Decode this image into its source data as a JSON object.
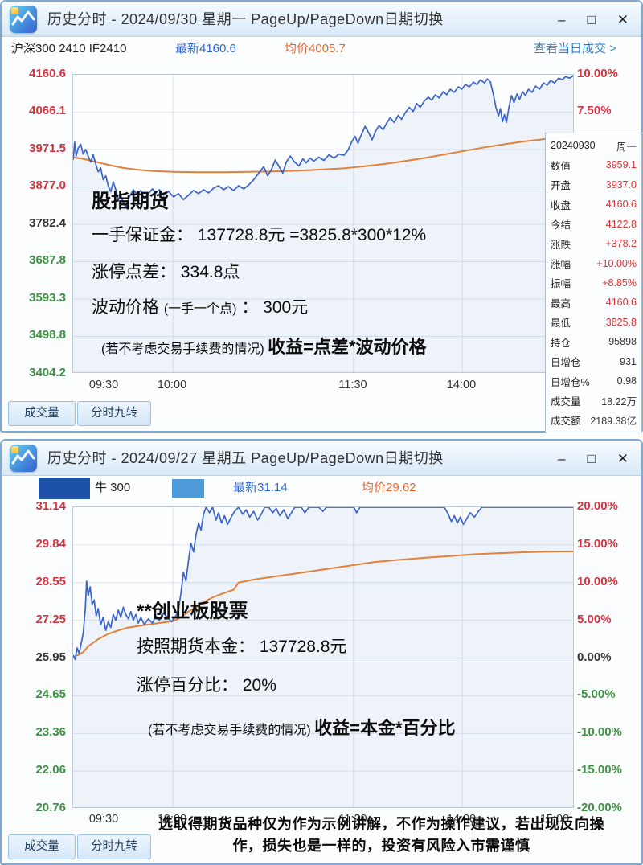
{
  "colors": {
    "price_line": "#3c64c8",
    "avg_line": "#e2813a",
    "grid": "#dde5ef",
    "area_fill": "rgba(110,145,210,0.10)",
    "up_red": "#d23440",
    "down_green": "#3d9140",
    "latest_blue": "#2a66d8",
    "avg_orange": "#e8662e",
    "link_blue": "#2f80d0",
    "censor_dark": "#1d4fa6",
    "censor_light": "#4f9ad8"
  },
  "window1": {
    "title": "历史分时 - 2024/09/30 星期一 PageUp/PageDown日期切换",
    "controls": {
      "minimize": "–",
      "maximize": "□",
      "close": "✕"
    },
    "info": {
      "symbol": "沪深300 2410  IF2410",
      "latest": "最新4160.6",
      "avg": "均价4005.7",
      "link": "查看当日成交 >"
    },
    "left_axis": [
      "4160.6",
      "4066.1",
      "3971.5",
      "3877.0",
      "3782.4",
      "3687.8",
      "3593.3",
      "3498.8",
      "3404.2"
    ],
    "right_axis": [
      "10.00%",
      "7.50%"
    ],
    "x_labels": [
      "09:30",
      "10:00",
      "11:30",
      "14:00"
    ],
    "tabs": [
      "成交量",
      "分时九转"
    ],
    "panel": {
      "date": "20240930",
      "day": "周一",
      "rows": [
        {
          "label": "数值",
          "value": "3959.1"
        },
        {
          "label": "开盘",
          "value": "3937.0"
        },
        {
          "label": "收盘",
          "value": "4160.6"
        },
        {
          "label": "今结",
          "value": "4122.8"
        },
        {
          "label": "涨跌",
          "value": "+378.2"
        },
        {
          "label": "涨幅",
          "value": "+10.00%"
        },
        {
          "label": "振幅",
          "value": "+8.85%"
        },
        {
          "label": "最高",
          "value": "4160.6"
        },
        {
          "label": "最低",
          "value": "3825.8"
        },
        {
          "label": "持仓",
          "value": "95898"
        },
        {
          "label": "日增仓",
          "value": "931"
        },
        {
          "label": "日增仓%",
          "value": "0.98"
        },
        {
          "label": "成交量",
          "value": "18.22万"
        },
        {
          "label": "成交额",
          "value": "2189.38亿"
        }
      ]
    },
    "overlay": {
      "title": "股指期货",
      "line1": "一手保证金： 137728.8元 =3825.8*300*12%",
      "line2": "涨停点差： 334.8点",
      "line3_pre": "波动价格 ",
      "line3_paren": "(一手一个点)",
      "line3_post": " ： 300元",
      "line4_paren": "(若不考虑交易手续费的情况) ",
      "line4_bold": "收益=点差*波动价格"
    },
    "chart": {
      "type": "line",
      "ymax": 4160.6,
      "ymin": 3404.2,
      "prev_close": 3782.4,
      "grid_x": [
        0.199,
        0.559,
        0.776
      ],
      "avg": [
        [
          0,
          3952
        ],
        [
          0.02,
          3948
        ],
        [
          0.04,
          3942
        ],
        [
          0.06,
          3936
        ],
        [
          0.08,
          3930
        ],
        [
          0.1,
          3925
        ],
        [
          0.13,
          3920
        ],
        [
          0.16,
          3917
        ],
        [
          0.2,
          3915
        ],
        [
          0.25,
          3914
        ],
        [
          0.3,
          3914
        ],
        [
          0.35,
          3915
        ],
        [
          0.4,
          3916
        ],
        [
          0.45,
          3918
        ],
        [
          0.5,
          3921
        ],
        [
          0.54,
          3924
        ],
        [
          0.58,
          3929
        ],
        [
          0.62,
          3935
        ],
        [
          0.66,
          3942
        ],
        [
          0.7,
          3950
        ],
        [
          0.74,
          3959
        ],
        [
          0.78,
          3968
        ],
        [
          0.82,
          3977
        ],
        [
          0.86,
          3985
        ],
        [
          0.9,
          3992
        ],
        [
          0.94,
          3998
        ],
        [
          0.97,
          4002
        ],
        [
          1,
          4005.7
        ]
      ],
      "price": [
        [
          0,
          3945
        ],
        [
          0.003,
          3990
        ],
        [
          0.006,
          3955
        ],
        [
          0.01,
          3975
        ],
        [
          0.015,
          3985
        ],
        [
          0.02,
          3960
        ],
        [
          0.025,
          3972
        ],
        [
          0.03,
          3955
        ],
        [
          0.035,
          3940
        ],
        [
          0.04,
          3958
        ],
        [
          0.045,
          3935
        ],
        [
          0.05,
          3915
        ],
        [
          0.055,
          3925
        ],
        [
          0.06,
          3895
        ],
        [
          0.065,
          3905
        ],
        [
          0.07,
          3880
        ],
        [
          0.075,
          3865
        ],
        [
          0.08,
          3890
        ],
        [
          0.085,
          3870
        ],
        [
          0.09,
          3845
        ],
        [
          0.095,
          3855
        ],
        [
          0.1,
          3838
        ],
        [
          0.105,
          3826
        ],
        [
          0.112,
          3852
        ],
        [
          0.12,
          3870
        ],
        [
          0.128,
          3858
        ],
        [
          0.135,
          3868
        ],
        [
          0.142,
          3848
        ],
        [
          0.15,
          3860
        ],
        [
          0.158,
          3872
        ],
        [
          0.165,
          3862
        ],
        [
          0.172,
          3870
        ],
        [
          0.18,
          3856
        ],
        [
          0.19,
          3866
        ],
        [
          0.2,
          3852
        ],
        [
          0.21,
          3860
        ],
        [
          0.22,
          3845
        ],
        [
          0.23,
          3856
        ],
        [
          0.24,
          3868
        ],
        [
          0.25,
          3860
        ],
        [
          0.26,
          3870
        ],
        [
          0.27,
          3862
        ],
        [
          0.28,
          3874
        ],
        [
          0.29,
          3880
        ],
        [
          0.3,
          3870
        ],
        [
          0.31,
          3878
        ],
        [
          0.32,
          3868
        ],
        [
          0.33,
          3880
        ],
        [
          0.34,
          3872
        ],
        [
          0.35,
          3882
        ],
        [
          0.36,
          3895
        ],
        [
          0.37,
          3912
        ],
        [
          0.38,
          3928
        ],
        [
          0.388,
          3905
        ],
        [
          0.395,
          3920
        ],
        [
          0.403,
          3945
        ],
        [
          0.41,
          3930
        ],
        [
          0.418,
          3912
        ],
        [
          0.425,
          3940
        ],
        [
          0.433,
          3955
        ],
        [
          0.44,
          3942
        ],
        [
          0.45,
          3930
        ],
        [
          0.458,
          3948
        ],
        [
          0.465,
          3938
        ],
        [
          0.472,
          3950
        ],
        [
          0.48,
          3942
        ],
        [
          0.49,
          3952
        ],
        [
          0.5,
          3944
        ],
        [
          0.51,
          3958
        ],
        [
          0.52,
          3950
        ],
        [
          0.53,
          3960
        ],
        [
          0.54,
          3957
        ],
        [
          0.548,
          3970
        ],
        [
          0.555,
          3990
        ],
        [
          0.562,
          4005
        ],
        [
          0.568,
          3988
        ],
        [
          0.575,
          4010
        ],
        [
          0.582,
          4030
        ],
        [
          0.59,
          4012
        ],
        [
          0.596,
          3996
        ],
        [
          0.603,
          4018
        ],
        [
          0.61,
          4032
        ],
        [
          0.618,
          4022
        ],
        [
          0.625,
          4038
        ],
        [
          0.632,
          4052
        ],
        [
          0.64,
          4040
        ],
        [
          0.648,
          4058
        ],
        [
          0.655,
          4048
        ],
        [
          0.662,
          4064
        ],
        [
          0.67,
          4078
        ],
        [
          0.678,
          4068
        ],
        [
          0.685,
          4088
        ],
        [
          0.692,
          4078
        ],
        [
          0.7,
          4094
        ],
        [
          0.708,
          4104
        ],
        [
          0.715,
          4096
        ],
        [
          0.722,
          4110
        ],
        [
          0.73,
          4102
        ],
        [
          0.738,
          4118
        ],
        [
          0.745,
          4110
        ],
        [
          0.752,
          4124
        ],
        [
          0.76,
          4116
        ],
        [
          0.768,
          4130
        ],
        [
          0.775,
          4124
        ],
        [
          0.782,
          4136
        ],
        [
          0.79,
          4130
        ],
        [
          0.798,
          4142
        ],
        [
          0.805,
          4136
        ],
        [
          0.812,
          4148
        ],
        [
          0.82,
          4140
        ],
        [
          0.826,
          4150
        ],
        [
          0.832,
          4142
        ],
        [
          0.838,
          4110
        ],
        [
          0.843,
          4078
        ],
        [
          0.848,
          4056
        ],
        [
          0.852,
          4075
        ],
        [
          0.856,
          4042
        ],
        [
          0.86,
          4060
        ],
        [
          0.864,
          4040
        ],
        [
          0.869,
          4080
        ],
        [
          0.874,
          4108
        ],
        [
          0.879,
          4090
        ],
        [
          0.885,
          4112
        ],
        [
          0.89,
          4098
        ],
        [
          0.896,
          4118
        ],
        [
          0.902,
          4108
        ],
        [
          0.908,
          4124
        ],
        [
          0.915,
          4116
        ],
        [
          0.922,
          4132
        ],
        [
          0.93,
          4124
        ],
        [
          0.938,
          4140
        ],
        [
          0.945,
          4134
        ],
        [
          0.952,
          4146
        ],
        [
          0.96,
          4140
        ],
        [
          0.968,
          4152
        ],
        [
          0.975,
          4148
        ],
        [
          0.982,
          4156
        ],
        [
          0.99,
          4152
        ],
        [
          1,
          4160.6
        ]
      ]
    }
  },
  "window2": {
    "title": "历史分时 - 2024/09/27 星期五 PageUp/PageDown日期切换",
    "controls": {
      "minimize": "–",
      "maximize": "□",
      "close": "✕"
    },
    "info": {
      "symbol_visible": "牛  300",
      "latest": "最新31.14",
      "avg": "均价29.62"
    },
    "left_axis": [
      "31.14",
      "29.84",
      "28.55",
      "27.25",
      "25.95",
      "24.65",
      "23.36",
      "22.06",
      "20.76"
    ],
    "right_axis": [
      "20.00%",
      "15.00%",
      "10.00%",
      "5.00%",
      "0.00%",
      "-5.00%",
      "-10.00%",
      "-15.00%",
      "-20.00%"
    ],
    "x_labels": [
      "09:30",
      "10:00",
      "11:30",
      "14:00",
      "15:00"
    ],
    "tabs": [
      "成交量",
      "分时九转"
    ],
    "overlay": {
      "title": "**创业板股票",
      "line1": "按照期货本金： 137728.8元",
      "line2": "涨停百分比： 20%",
      "line3_paren": "(若不考虑交易手续费的情况) ",
      "line3_bold": "收益=本金*百分比"
    },
    "chart": {
      "type": "line",
      "ymax": 31.14,
      "ymin": 20.76,
      "prev_close": 25.95,
      "grid_x": [
        0.199,
        0.559,
        0.776
      ],
      "avg": [
        [
          0,
          25.98
        ],
        [
          0.01,
          26.05
        ],
        [
          0.02,
          26.15
        ],
        [
          0.03,
          26.35
        ],
        [
          0.05,
          26.6
        ],
        [
          0.07,
          26.78
        ],
        [
          0.09,
          26.9
        ],
        [
          0.11,
          27.0
        ],
        [
          0.14,
          27.08
        ],
        [
          0.17,
          27.15
        ],
        [
          0.2,
          27.22
        ],
        [
          0.215,
          27.35
        ],
        [
          0.23,
          27.55
        ],
        [
          0.25,
          27.75
        ],
        [
          0.265,
          27.92
        ],
        [
          0.28,
          28.05
        ],
        [
          0.3,
          28.18
        ],
        [
          0.32,
          28.3
        ],
        [
          0.33,
          28.55
        ],
        [
          0.36,
          28.65
        ],
        [
          0.4,
          28.75
        ],
        [
          0.44,
          28.85
        ],
        [
          0.48,
          28.95
        ],
        [
          0.52,
          29.05
        ],
        [
          0.56,
          29.15
        ],
        [
          0.6,
          29.25
        ],
        [
          0.65,
          29.33
        ],
        [
          0.7,
          29.4
        ],
        [
          0.75,
          29.46
        ],
        [
          0.8,
          29.52
        ],
        [
          0.85,
          29.56
        ],
        [
          0.9,
          29.59
        ],
        [
          0.95,
          29.61
        ],
        [
          1,
          29.62
        ]
      ],
      "price": [
        [
          0,
          26.05
        ],
        [
          0.004,
          25.9
        ],
        [
          0.008,
          26.3
        ],
        [
          0.012,
          26.1
        ],
        [
          0.016,
          26.45
        ],
        [
          0.02,
          26.8
        ],
        [
          0.024,
          27.6
        ],
        [
          0.027,
          28.6
        ],
        [
          0.03,
          28.1
        ],
        [
          0.034,
          28.4
        ],
        [
          0.038,
          27.8
        ],
        [
          0.042,
          27.95
        ],
        [
          0.046,
          27.4
        ],
        [
          0.05,
          27.65
        ],
        [
          0.055,
          27.1
        ],
        [
          0.06,
          27.35
        ],
        [
          0.065,
          26.9
        ],
        [
          0.07,
          27.2
        ],
        [
          0.075,
          27.0
        ],
        [
          0.08,
          27.45
        ],
        [
          0.085,
          27.25
        ],
        [
          0.09,
          27.6
        ],
        [
          0.095,
          27.35
        ],
        [
          0.1,
          27.7
        ],
        [
          0.105,
          27.45
        ],
        [
          0.11,
          27.3
        ],
        [
          0.115,
          27.55
        ],
        [
          0.12,
          27.25
        ],
        [
          0.125,
          27.45
        ],
        [
          0.13,
          27.15
        ],
        [
          0.135,
          27.35
        ],
        [
          0.142,
          27.1
        ],
        [
          0.15,
          27.3
        ],
        [
          0.158,
          27.15
        ],
        [
          0.165,
          27.4
        ],
        [
          0.172,
          27.25
        ],
        [
          0.18,
          27.5
        ],
        [
          0.188,
          27.35
        ],
        [
          0.196,
          27.2
        ],
        [
          0.205,
          27.4
        ],
        [
          0.21,
          27.6
        ],
        [
          0.215,
          28.2
        ],
        [
          0.22,
          28.9
        ],
        [
          0.225,
          28.6
        ],
        [
          0.23,
          29.3
        ],
        [
          0.235,
          29.9
        ],
        [
          0.24,
          29.6
        ],
        [
          0.245,
          30.2
        ],
        [
          0.25,
          30.6
        ],
        [
          0.255,
          30.35
        ],
        [
          0.26,
          30.9
        ],
        [
          0.265,
          31.14
        ],
        [
          0.272,
          30.95
        ],
        [
          0.278,
          31.14
        ],
        [
          0.285,
          30.7
        ],
        [
          0.29,
          30.95
        ],
        [
          0.296,
          30.6
        ],
        [
          0.302,
          30.85
        ],
        [
          0.308,
          30.55
        ],
        [
          0.315,
          30.8
        ],
        [
          0.322,
          31.0
        ],
        [
          0.33,
          31.14
        ],
        [
          0.338,
          30.9
        ],
        [
          0.345,
          31.05
        ],
        [
          0.352,
          30.8
        ],
        [
          0.36,
          31.0
        ],
        [
          0.368,
          30.7
        ],
        [
          0.375,
          30.9
        ],
        [
          0.382,
          31.14
        ],
        [
          0.39,
          31.14
        ],
        [
          0.398,
          30.95
        ],
        [
          0.405,
          31.1
        ],
        [
          0.412,
          30.85
        ],
        [
          0.42,
          31.05
        ],
        [
          0.428,
          30.75
        ],
        [
          0.435,
          30.95
        ],
        [
          0.442,
          31.14
        ],
        [
          0.455,
          31.14
        ],
        [
          0.462,
          30.95
        ],
        [
          0.47,
          31.14
        ],
        [
          0.49,
          31.14
        ],
        [
          0.498,
          31.0
        ],
        [
          0.505,
          31.14
        ],
        [
          0.56,
          31.14
        ],
        [
          0.565,
          30.95
        ],
        [
          0.572,
          31.14
        ],
        [
          0.64,
          31.14
        ],
        [
          0.74,
          31.14
        ],
        [
          0.748,
          30.9
        ],
        [
          0.754,
          30.65
        ],
        [
          0.76,
          30.85
        ],
        [
          0.766,
          30.6
        ],
        [
          0.772,
          30.8
        ],
        [
          0.778,
          30.55
        ],
        [
          0.785,
          30.75
        ],
        [
          0.792,
          30.95
        ],
        [
          0.8,
          30.8
        ],
        [
          0.808,
          31.0
        ],
        [
          0.815,
          31.14
        ],
        [
          0.9,
          31.14
        ],
        [
          1,
          31.14
        ]
      ]
    }
  },
  "disclaimer": {
    "line1": "选取得期货品种仅为作为示例讲解，不作为操作建议，若出现反向操",
    "line2": "作，损失也是一样的，投资有风险入市需谨慎"
  }
}
